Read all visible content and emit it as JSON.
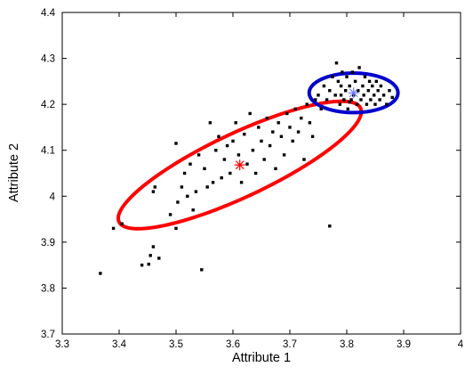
{
  "chart_data": {
    "type": "scatter",
    "xlabel": "Attribute 1",
    "ylabel": "Attribute 2",
    "xlim": [
      3.3,
      4.0
    ],
    "ylim": [
      3.7,
      4.4
    ],
    "xticks": [
      "3.3",
      "3.4",
      "3.5",
      "3.6",
      "3.7",
      "3.8",
      "3.9",
      "4"
    ],
    "yticks": [
      "3.7",
      "3.8",
      "3.9",
      "4",
      "4.1",
      "4.2",
      "4.3",
      "4.4"
    ],
    "grid": false,
    "legend": "none",
    "series": [
      {
        "type": "scatter",
        "color": "#000000",
        "points": [
          [
            3.367,
            3.832
          ],
          [
            3.39,
            3.93
          ],
          [
            3.405,
            3.94
          ],
          [
            3.44,
            3.85
          ],
          [
            3.452,
            3.852
          ],
          [
            3.455,
            3.871
          ],
          [
            3.46,
            3.89
          ],
          [
            3.47,
            3.865
          ],
          [
            3.46,
            4.01
          ],
          [
            3.463,
            4.02
          ],
          [
            3.49,
            3.96
          ],
          [
            3.5,
            3.93
          ],
          [
            3.503,
            3.987
          ],
          [
            3.51,
            4.02
          ],
          [
            3.5,
            4.115
          ],
          [
            3.515,
            4.05
          ],
          [
            3.52,
            4.0
          ],
          [
            3.525,
            4.07
          ],
          [
            3.53,
            3.97
          ],
          [
            3.535,
            4.01
          ],
          [
            3.54,
            4.09
          ],
          [
            3.545,
            3.84
          ],
          [
            3.55,
            4.06
          ],
          [
            3.555,
            4.02
          ],
          [
            3.56,
            4.16
          ],
          [
            3.565,
            4.03
          ],
          [
            3.57,
            4.1
          ],
          [
            3.575,
            4.13
          ],
          [
            3.58,
            4.04
          ],
          [
            3.585,
            4.08
          ],
          [
            3.59,
            4.11
          ],
          [
            3.595,
            4.05
          ],
          [
            3.6,
            4.12
          ],
          [
            3.605,
            4.16
          ],
          [
            3.61,
            4.09
          ],
          [
            3.615,
            4.03
          ],
          [
            3.62,
            4.135
          ],
          [
            3.625,
            4.07
          ],
          [
            3.63,
            4.18
          ],
          [
            3.635,
            4.1
          ],
          [
            3.64,
            4.05
          ],
          [
            3.645,
            4.15
          ],
          [
            3.65,
            4.12
          ],
          [
            3.655,
            4.08
          ],
          [
            3.66,
            4.17
          ],
          [
            3.665,
            4.11
          ],
          [
            3.67,
            4.14
          ],
          [
            3.675,
            4.06
          ],
          [
            3.68,
            4.16
          ],
          [
            3.685,
            4.13
          ],
          [
            3.69,
            4.09
          ],
          [
            3.695,
            4.18
          ],
          [
            3.7,
            4.15
          ],
          [
            3.705,
            4.12
          ],
          [
            3.71,
            4.19
          ],
          [
            3.715,
            4.14
          ],
          [
            3.72,
            4.17
          ],
          [
            3.725,
            4.08
          ],
          [
            3.73,
            4.2
          ],
          [
            3.735,
            4.16
          ],
          [
            3.74,
            4.13
          ],
          [
            3.745,
            4.21
          ],
          [
            3.75,
            4.22
          ],
          [
            3.755,
            4.19
          ],
          [
            3.76,
            4.24
          ],
          [
            3.765,
            4.21
          ],
          [
            3.77,
            4.23
          ],
          [
            3.775,
            4.26
          ],
          [
            3.78,
            4.22
          ],
          [
            3.782,
            4.29
          ],
          [
            3.785,
            4.25
          ],
          [
            3.788,
            4.2
          ],
          [
            3.79,
            4.24
          ],
          [
            3.792,
            4.27
          ],
          [
            3.795,
            4.21
          ],
          [
            3.798,
            4.23
          ],
          [
            3.8,
            4.26
          ],
          [
            3.802,
            4.19
          ],
          [
            3.805,
            4.24
          ],
          [
            3.808,
            4.21
          ],
          [
            3.81,
            4.27
          ],
          [
            3.812,
            4.22
          ],
          [
            3.815,
            4.25
          ],
          [
            3.818,
            4.2
          ],
          [
            3.82,
            4.23
          ],
          [
            3.822,
            4.28
          ],
          [
            3.825,
            4.21
          ],
          [
            3.828,
            4.24
          ],
          [
            3.83,
            4.22
          ],
          [
            3.832,
            4.26
          ],
          [
            3.835,
            4.2
          ],
          [
            3.838,
            4.23
          ],
          [
            3.84,
            4.25
          ],
          [
            3.842,
            4.21
          ],
          [
            3.845,
            4.24
          ],
          [
            3.848,
            4.22
          ],
          [
            3.85,
            4.2
          ],
          [
            3.852,
            4.25
          ],
          [
            3.855,
            4.23
          ],
          [
            3.858,
            4.21
          ],
          [
            3.86,
            4.24
          ],
          [
            3.865,
            4.22
          ],
          [
            3.87,
            4.2
          ],
          [
            3.875,
            4.23
          ],
          [
            3.88,
            4.215
          ],
          [
            3.77,
            3.935
          ],
          [
            3.805,
            4.205
          ],
          [
            3.79,
            4.22
          ]
        ]
      }
    ],
    "centers": [
      {
        "x": 3.612,
        "y": 4.068,
        "color": "#ff0000"
      },
      {
        "x": 3.812,
        "y": 4.225,
        "color": "#6f7cff"
      }
    ],
    "ellipses": [
      {
        "color": "#ff0000",
        "center": [
          3.612,
          4.068
        ],
        "major_axis_length": 0.246,
        "minor_axis_length": 0.066,
        "rotation_deg": 31
      },
      {
        "color": "#0000cc",
        "center": [
          3.812,
          4.225
        ],
        "major_axis_length": 0.078,
        "minor_axis_length": 0.043,
        "rotation_deg": 0
      }
    ]
  }
}
